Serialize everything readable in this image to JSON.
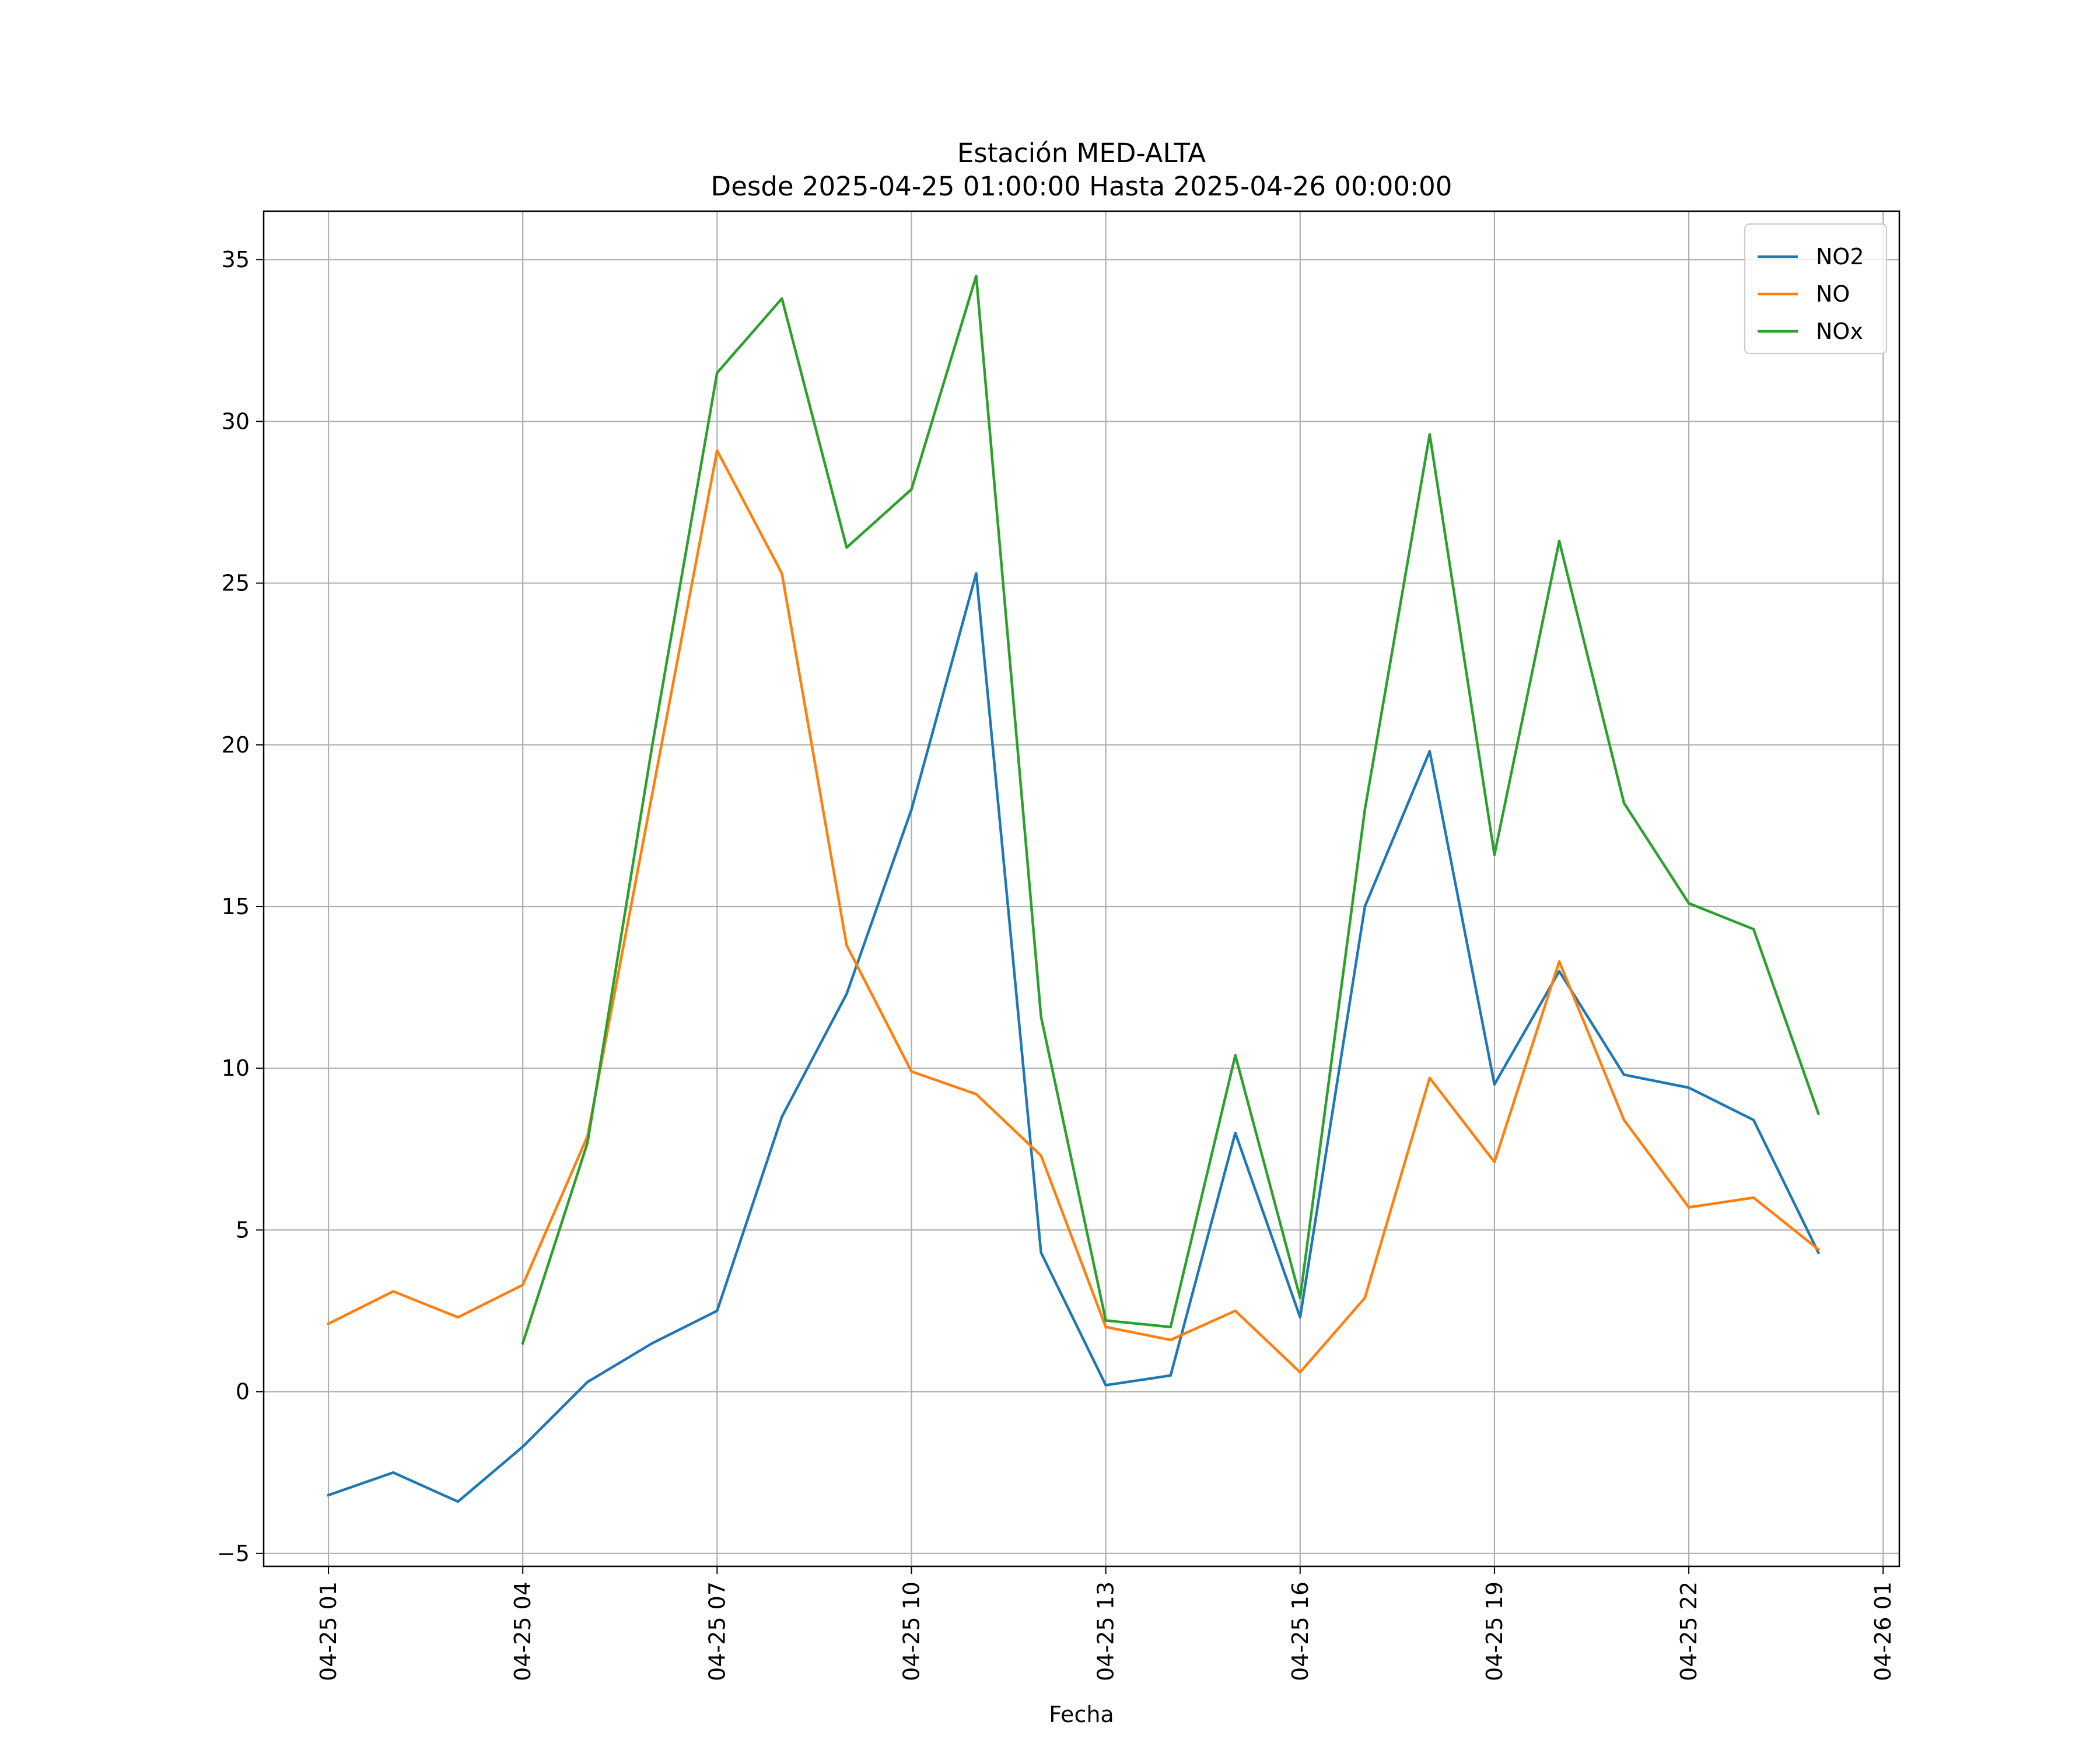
{
  "chart_data": {
    "type": "line",
    "title": "Estación MED-ALTA",
    "subtitle": "Desde 2025-04-25 01:00:00 Hasta 2025-04-26 00:00:00",
    "xlabel": "Fecha",
    "ylabel": "",
    "grid": true,
    "legend_position": "top-right",
    "x": [
      "2025-04-25 01:00",
      "2025-04-25 02:00",
      "2025-04-25 03:00",
      "2025-04-25 04:00",
      "2025-04-25 05:00",
      "2025-04-25 06:00",
      "2025-04-25 07:00",
      "2025-04-25 08:00",
      "2025-04-25 09:00",
      "2025-04-25 10:00",
      "2025-04-25 11:00",
      "2025-04-25 12:00",
      "2025-04-25 13:00",
      "2025-04-25 14:00",
      "2025-04-25 15:00",
      "2025-04-25 16:00",
      "2025-04-25 17:00",
      "2025-04-25 18:00",
      "2025-04-25 19:00",
      "2025-04-25 20:00",
      "2025-04-25 21:00",
      "2025-04-25 22:00",
      "2025-04-25 23:00",
      "2025-04-26 00:00"
    ],
    "xlim": [
      "2025-04-25 00:00",
      "2025-04-26 01:15"
    ],
    "xticks": [
      "04-25 01",
      "04-25 04",
      "04-25 07",
      "04-25 10",
      "04-25 13",
      "04-25 16",
      "04-25 19",
      "04-25 22",
      "04-26 01"
    ],
    "ylim": [
      -5.4,
      36.5
    ],
    "yticks": [
      "−5",
      "0",
      "5",
      "10",
      "15",
      "20",
      "25",
      "30",
      "35"
    ],
    "series": [
      {
        "name": "NO2",
        "color": "#1f77b4",
        "values": [
          -3.2,
          -2.5,
          -3.4,
          -1.7,
          0.3,
          1.5,
          2.5,
          8.5,
          12.3,
          18.0,
          25.3,
          4.3,
          0.2,
          0.5,
          8.0,
          2.3,
          15.0,
          19.8,
          9.5,
          13.0,
          9.8,
          9.4,
          8.4,
          4.3
        ]
      },
      {
        "name": "NO",
        "color": "#ff7f0e",
        "values": [
          2.1,
          3.1,
          2.3,
          3.3,
          7.9,
          18.5,
          29.1,
          25.3,
          13.8,
          9.9,
          9.2,
          7.3,
          2.0,
          1.6,
          2.5,
          0.6,
          2.9,
          9.7,
          7.1,
          13.3,
          8.4,
          5.7,
          6.0,
          4.4
        ]
      },
      {
        "name": "NOx",
        "color": "#2ca02c",
        "values": [
          null,
          null,
          null,
          1.5,
          7.7,
          20.0,
          31.5,
          33.8,
          26.1,
          27.9,
          34.5,
          11.6,
          2.2,
          2.0,
          10.4,
          2.9,
          18.0,
          29.6,
          16.6,
          26.3,
          18.2,
          15.1,
          14.3,
          8.6
        ]
      }
    ]
  }
}
